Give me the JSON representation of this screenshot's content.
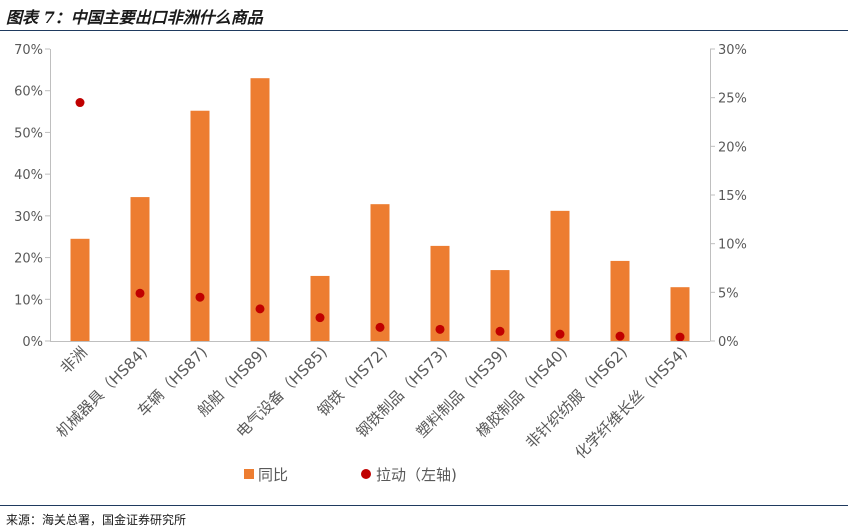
{
  "header": {
    "title": "图表 7：中国主要出口非洲什么商品"
  },
  "footer": {
    "source": "来源：海关总署，国金证券研究所"
  },
  "chart_data": {
    "type": "bar",
    "categories": [
      "非洲",
      "机械器具（HS84)",
      "车辆（HS87)",
      "船舶（HS89)",
      "电气设备（HS85)",
      "钢铁（HS72)",
      "钢铁制品（HS73)",
      "塑料制品（HS39)",
      "橡胶制品（HS40)",
      "非针织纺服（HS62)",
      "化学纤维长丝（HS54)"
    ],
    "series": [
      {
        "name": "同比",
        "type": "bar",
        "axis": "left",
        "color": "#ED7D31",
        "values": [
          24.5,
          34.5,
          55.2,
          63.0,
          15.6,
          32.8,
          22.8,
          17.0,
          31.2,
          19.2,
          12.9
        ]
      },
      {
        "name": "拉动（左轴)",
        "type": "scatter",
        "axis": "right",
        "color": "#C00000",
        "values": [
          24.5,
          4.9,
          4.5,
          3.3,
          2.4,
          1.4,
          1.2,
          1.0,
          0.7,
          0.5,
          0.4
        ]
      }
    ],
    "y_left": {
      "min": 0,
      "max": 70,
      "step": 10,
      "ticks": [
        "0%",
        "10%",
        "20%",
        "30%",
        "40%",
        "50%",
        "60%",
        "70%"
      ]
    },
    "y_right": {
      "min": 0,
      "max": 30,
      "step": 5,
      "ticks": [
        "0%",
        "5%",
        "10%",
        "15%",
        "20%",
        "25%",
        "30%"
      ]
    },
    "legend": {
      "position": "bottom",
      "items": [
        "同比",
        "拉动（左轴)"
      ]
    },
    "grid": false
  }
}
